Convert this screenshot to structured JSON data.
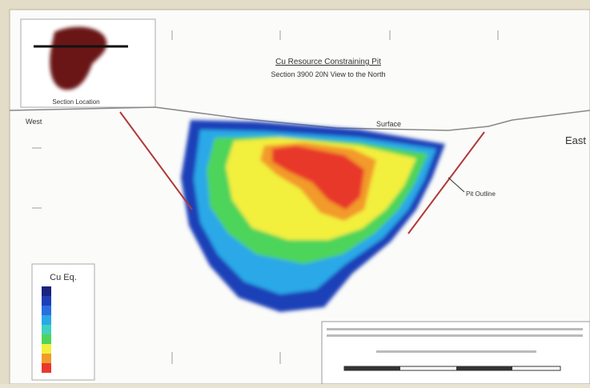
{
  "header": {
    "title": "Cu Resource Constraining Pit",
    "subtitle": "Section 3900 20N View to the North"
  },
  "inset": {
    "label": "Section Location"
  },
  "labels": {
    "west": "West",
    "east": "East",
    "surface": "Surface",
    "pit_outline": "Pit Outline"
  },
  "legend": {
    "title": "Cu Eq."
  }
}
